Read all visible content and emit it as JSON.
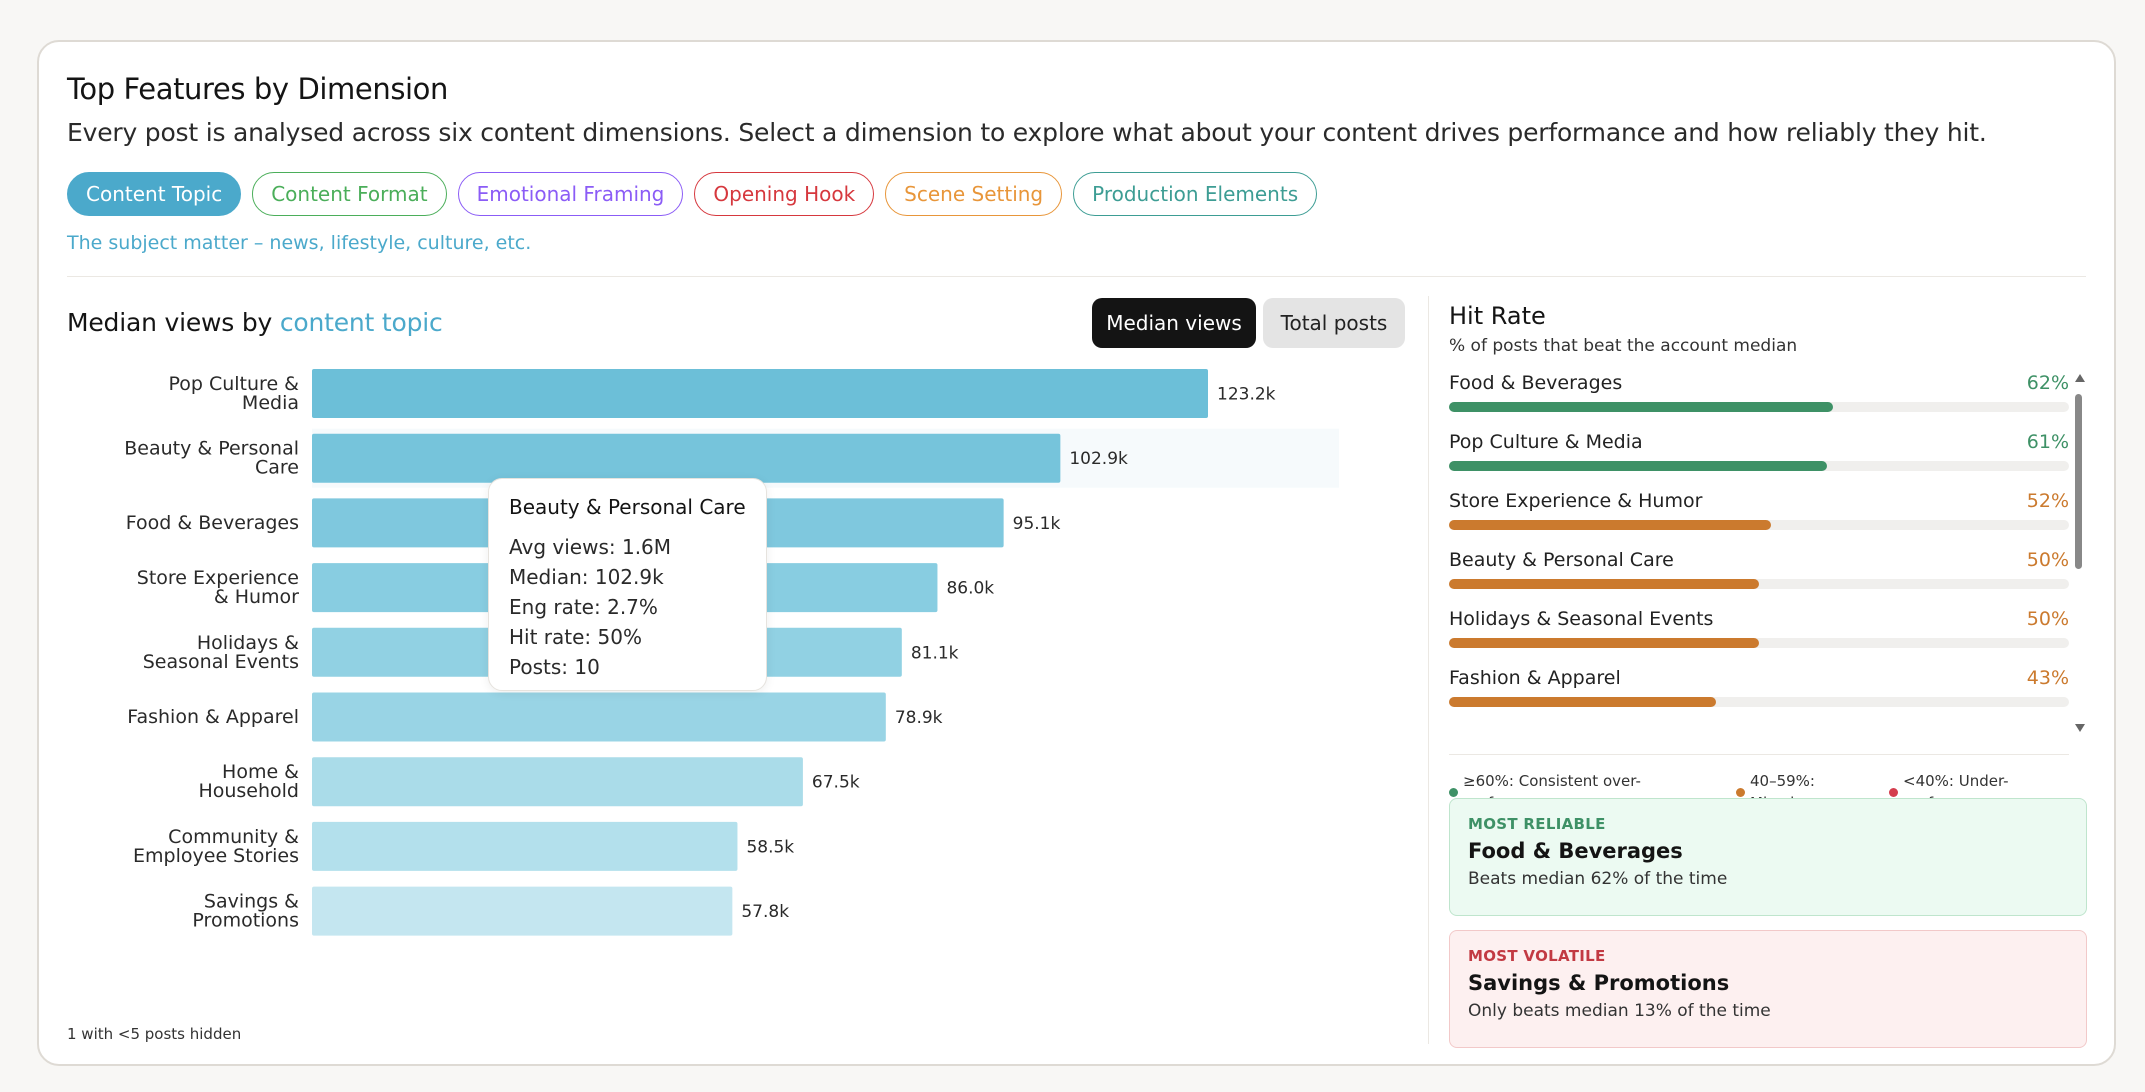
{
  "header": {
    "title": "Top Features by Dimension",
    "subtitle": "Every post is analysed across six content dimensions. Select a dimension to explore what about your content drives performance and how reliably they hit."
  },
  "colors": {
    "accent": "#4ba9cb",
    "green": "#3e9166",
    "orange": "#cb7a2e",
    "red": "#d43d4d"
  },
  "tabs": [
    {
      "label": "Content Topic",
      "color": "#4ba9cb",
      "active": true
    },
    {
      "label": "Content Format",
      "color": "#4bae5a",
      "active": false
    },
    {
      "label": "Emotional Framing",
      "color": "#8b5cf6",
      "active": false
    },
    {
      "label": "Opening Hook",
      "color": "#d6383e",
      "active": false
    },
    {
      "label": "Scene Setting",
      "color": "#e8963a",
      "active": false
    },
    {
      "label": "Production Elements",
      "color": "#3d9d94",
      "active": false
    }
  ],
  "dimension_description": "The subject matter – news, lifestyle, culture, etc.",
  "chart_section": {
    "title_prefix": "Median views by",
    "title_highlight": "content topic",
    "toggle_on": "Median views",
    "toggle_off": "Total posts",
    "footnote": "1 with <5 posts hidden"
  },
  "chart_data": {
    "type": "bar",
    "orientation": "horizontal",
    "categories": [
      [
        "Pop Culture &",
        "Media"
      ],
      [
        "Beauty & Personal",
        "Care"
      ],
      [
        "Food & Beverages"
      ],
      [
        "Store Experience",
        "& Humor"
      ],
      [
        "Holidays &",
        "Seasonal Events"
      ],
      [
        "Fashion & Apparel"
      ],
      [
        "Home &",
        "Household"
      ],
      [
        "Community &",
        "Employee Stories"
      ],
      [
        "Savings &",
        "Promotions"
      ]
    ],
    "values": [
      123.2,
      102.9,
      95.1,
      86.0,
      81.1,
      78.9,
      67.5,
      58.5,
      57.8
    ],
    "value_labels": [
      "123.2k",
      "102.9k",
      "95.1k",
      "86.0k",
      "81.1k",
      "78.9k",
      "67.5k",
      "58.5k",
      "57.8k"
    ],
    "unit": "k",
    "colors": [
      "#6cbfd8",
      "#76c4db",
      "#7fc8de",
      "#88cde1",
      "#91d1e3",
      "#99d4e5",
      "#aadce9",
      "#b3e0ec",
      "#c4e6f0"
    ],
    "grid": false,
    "xlim": [
      0,
      123.2
    ]
  },
  "tooltip": {
    "title": "Beauty & Personal Care",
    "rows": [
      {
        "label": "Avg views: ",
        "value": "1.6M"
      },
      {
        "label": "Median: ",
        "value": "102.9k"
      },
      {
        "label": "Eng rate: ",
        "value": "2.7%"
      },
      {
        "label": "Hit rate: ",
        "value": "50%"
      },
      {
        "label": "Posts: ",
        "value": "10"
      }
    ]
  },
  "hit_rate": {
    "title": "Hit Rate",
    "subtitle": "% of posts that beat the account median",
    "items": [
      {
        "name": "Food & Beverages",
        "pct_label": "62%",
        "value": 62,
        "color": "#3e9166"
      },
      {
        "name": "Pop Culture & Media",
        "pct_label": "61%",
        "value": 61,
        "color": "#3e9166"
      },
      {
        "name": "Store Experience & Humor",
        "pct_label": "52%",
        "value": 52,
        "color": "#cb7a2e"
      },
      {
        "name": "Beauty & Personal Care",
        "pct_label": "50%",
        "value": 50,
        "color": "#cb7a2e"
      },
      {
        "name": "Holidays & Seasonal Events",
        "pct_label": "50%",
        "value": 50,
        "color": "#cb7a2e"
      },
      {
        "name": "Fashion & Apparel",
        "pct_label": "43%",
        "value": 43,
        "color": "#cb7a2e"
      }
    ],
    "legend": [
      {
        "line1": "≥60%: Consistent over-",
        "line2": "performer",
        "color": "#3e9166"
      },
      {
        "line1": "40–59%:",
        "line2": "Mixed",
        "color": "#cb7a2e"
      },
      {
        "line1": "<40%: Under-",
        "line2": "performer",
        "color": "#d43d4d"
      }
    ]
  },
  "callouts": {
    "reliable": {
      "kicker": "MOST RELIABLE",
      "name": "Food & Beverages",
      "text": "Beats median 62% of the time",
      "color": "#3e9166"
    },
    "volatile": {
      "kicker": "MOST VOLATILE",
      "name": "Savings & Promotions",
      "text": "Only beats median 13% of the time",
      "color": "#c23a43"
    }
  }
}
